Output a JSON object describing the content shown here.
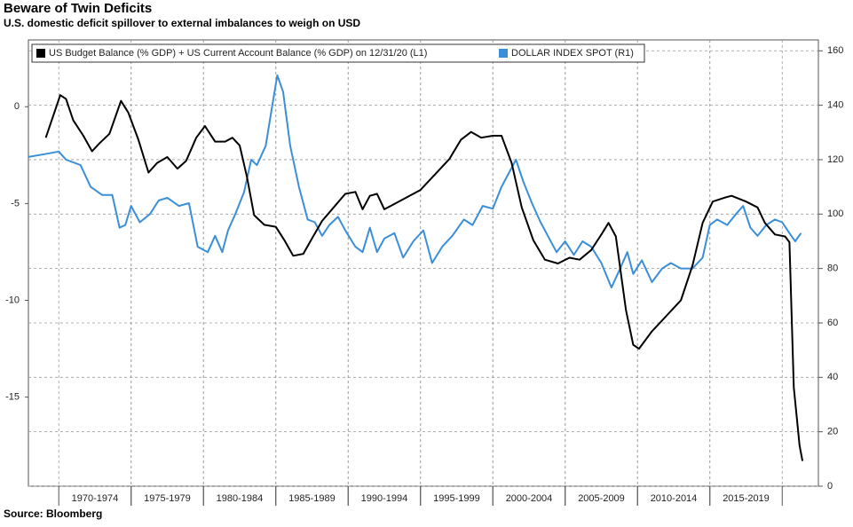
{
  "chart_data": {
    "type": "line",
    "title": "Beware of Twin Deficits",
    "subtitle": "U.S. domestic deficit spillover to external imbalances to weigh on USD",
    "source": "Source: Bloomberg",
    "xlim": [
      1967.9,
      2022.5
    ],
    "xticks": [
      {
        "value": 1972.5,
        "label": "1970-1974"
      },
      {
        "value": 1977.5,
        "label": "1975-1979"
      },
      {
        "value": 1982.5,
        "label": "1980-1984"
      },
      {
        "value": 1987.5,
        "label": "1985-1989"
      },
      {
        "value": 1992.5,
        "label": "1990-1994"
      },
      {
        "value": 1997.5,
        "label": "1995-1999"
      },
      {
        "value": 2002.5,
        "label": "2000-2004"
      },
      {
        "value": 2007.5,
        "label": "2005-2009"
      },
      {
        "value": 2012.5,
        "label": "2010-2014"
      },
      {
        "value": 2017.5,
        "label": "2015-2019"
      }
    ],
    "ylim": [
      -19.6,
      3.45
    ],
    "yticks": [
      0,
      -5,
      -10,
      -15
    ],
    "y2lim": [
      0,
      164
    ],
    "y2ticks": [
      0,
      20,
      40,
      60,
      80,
      100,
      120,
      140,
      160
    ],
    "grid": true,
    "legend": "top-left",
    "series": [
      {
        "name": "US Budget Balance (% GDP) + US Current Account Balance (% GDP) on 12/31/20 (L1)",
        "color": "#000000",
        "x": [
          1969.1,
          1970.1,
          1970.5,
          1971,
          1971.7,
          1972.3,
          1972.8,
          1973.5,
          1974.3,
          1974.8,
          1975.5,
          1976.2,
          1976.8,
          1977.5,
          1978.2,
          1978.8,
          1979.5,
          1980.1,
          1980.8,
          1981.5,
          1982,
          1982.5,
          1983,
          1983.5,
          1984.2,
          1985,
          1985.6,
          1986.2,
          1986.9,
          1987.5,
          1988.2,
          1989,
          1989.8,
          1990.5,
          1991,
          1991.5,
          1992,
          1992.5,
          1993,
          1994,
          1995,
          1996,
          1997,
          1997.8,
          1998.5,
          1999.2,
          2000,
          2000.6,
          2001.3,
          2002,
          2002.8,
          2003.6,
          2004.5,
          2005.3,
          2006,
          2006.8,
          2007.5,
          2008,
          2008.5,
          2009.2,
          2009.7,
          2010.1,
          2011,
          2011.5,
          2012,
          2013,
          2013.8,
          2014.5,
          2015.2,
          2016,
          2016.5,
          2017.5,
          2018.3,
          2018.8,
          2019.5,
          2020.2,
          2020.5,
          2020.8,
          2021.2,
          2021.4
        ],
        "values": [
          -1.6,
          0.6,
          0.4,
          -0.7,
          -1.5,
          -2.3,
          -1.9,
          -1.4,
          0.3,
          -0.3,
          -1.7,
          -3.4,
          -2.9,
          -2.6,
          -3.2,
          -2.8,
          -1.6,
          -1.0,
          -1.8,
          -1.8,
          -1.6,
          -2.0,
          -3.6,
          -5.6,
          -6.1,
          -6.2,
          -6.9,
          -7.7,
          -7.6,
          -6.8,
          -5.9,
          -5.2,
          -4.5,
          -4.4,
          -5.3,
          -4.6,
          -4.5,
          -5.3,
          -5.1,
          -4.7,
          -4.3,
          -3.5,
          -2.7,
          -1.7,
          -1.3,
          -1.6,
          -1.5,
          -1.5,
          -2.9,
          -5.2,
          -6.9,
          -7.9,
          -8.1,
          -7.8,
          -7.9,
          -7.4,
          -6.6,
          -6.0,
          -6.7,
          -10.5,
          -12.3,
          -12.5,
          -11.6,
          -11.2,
          -10.8,
          -10.0,
          -8.2,
          -6.0,
          -4.9,
          -4.7,
          -4.6,
          -4.9,
          -5.2,
          -6.0,
          -6.6,
          -6.7,
          -7.0,
          -14.5,
          -17.5,
          -18.3
        ]
      },
      {
        "name": "DOLLAR INDEX SPOT  (R1)",
        "color": "#3a8fd8",
        "axis": "y2",
        "x": [
          1967.9,
          1969,
          1970,
          1970.5,
          1971.5,
          1972.2,
          1973,
          1973.7,
          1974.2,
          1974.6,
          1975,
          1975.6,
          1976.3,
          1976.9,
          1977.5,
          1978.3,
          1979,
          1979.6,
          1980.3,
          1980.8,
          1981.3,
          1981.7,
          1982.2,
          1982.8,
          1983.3,
          1983.7,
          1984.3,
          1984.7,
          1985.1,
          1985.5,
          1986,
          1986.6,
          1987.2,
          1987.7,
          1988.2,
          1988.7,
          1989.3,
          1989.8,
          1990.5,
          1991,
          1991.5,
          1992,
          1992.5,
          1993.2,
          1993.8,
          1994.5,
          1995.2,
          1995.8,
          1996.5,
          1997.2,
          1998,
          1998.6,
          1999.3,
          2000,
          2000.6,
          2001,
          2001.6,
          2002.1,
          2002.7,
          2003.3,
          2003.8,
          2004.4,
          2005,
          2005.6,
          2006.2,
          2006.8,
          2007.5,
          2008.2,
          2008.8,
          2009.3,
          2009.7,
          2010.3,
          2011,
          2011.7,
          2012.3,
          2013,
          2013.8,
          2014.5,
          2015,
          2015.5,
          2016.2,
          2016.8,
          2017.3,
          2017.8,
          2018.3,
          2018.9,
          2019.5,
          2020,
          2020.5,
          2020.9,
          2021.3
        ],
        "values": [
          121,
          122,
          123,
          120,
          118,
          110,
          107,
          107,
          95,
          96,
          103,
          97,
          100,
          105,
          106,
          103,
          104,
          88,
          86,
          92,
          86,
          94,
          100,
          108,
          120,
          118,
          125,
          138,
          151,
          145,
          125,
          110,
          98,
          97,
          92,
          96,
          99,
          94,
          88,
          86,
          95,
          86,
          91,
          93,
          84,
          90,
          94,
          82,
          88,
          92,
          98,
          96,
          103,
          102,
          110,
          114,
          120,
          112,
          104,
          97,
          92,
          86,
          90,
          85,
          90,
          88,
          82,
          73,
          80,
          86,
          78,
          83,
          75,
          80,
          82,
          80,
          80,
          84,
          96,
          98,
          96,
          100,
          103,
          95,
          92,
          96,
          98,
          97,
          93,
          90,
          93
        ]
      }
    ]
  }
}
